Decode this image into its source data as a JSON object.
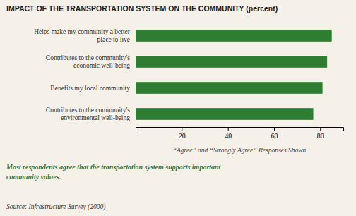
{
  "chart_data": {
    "type": "bar",
    "orientation": "horizontal",
    "title": "IMPACT OF THE TRANSPORTATION SYSTEM ON THE COMMUNITY (percent)",
    "categories": [
      "Contributes to the community's\nenvironmental well-being",
      "Benefits my local community",
      "Contributes to the community's\neconomic well-being",
      "Helps make my community a better\nplace to live"
    ],
    "values": [
      77,
      81,
      83,
      85
    ],
    "color": "#2e7d32",
    "xlim": [
      0,
      90
    ],
    "xticks": [
      20,
      40,
      60,
      80
    ],
    "xlabel": "“Agree” and “Strongly Agree” Responses Shown",
    "grid": false,
    "annotations": [
      {
        "text": "Most respondents agree that the transportation system supports important\ncommunity values.",
        "color": "#2e7d32"
      },
      {
        "text": "Source: Infrastructure Survey (2000)"
      }
    ]
  }
}
